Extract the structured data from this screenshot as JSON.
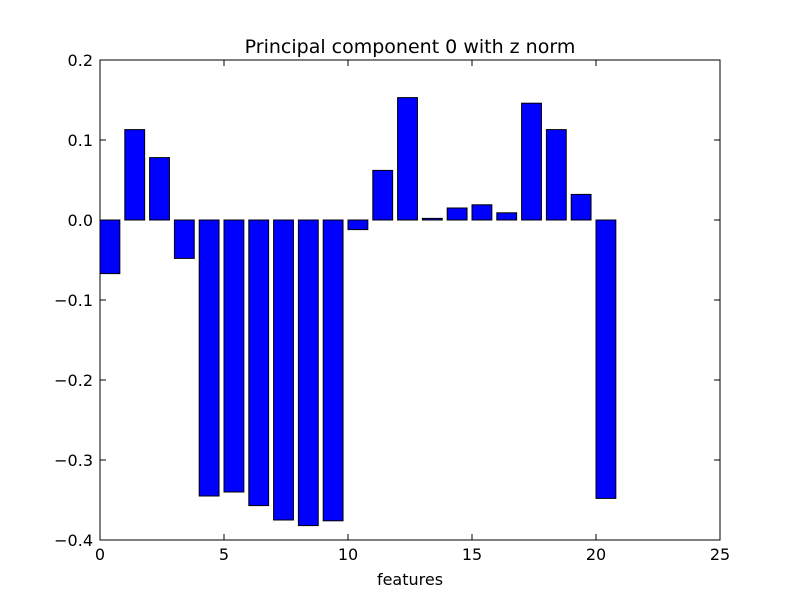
{
  "chart_data": {
    "type": "bar",
    "title": "Principal component 0 with z norm",
    "xlabel": "features",
    "ylabel": "",
    "xlim": [
      0,
      25
    ],
    "ylim": [
      -0.4,
      0.2
    ],
    "bar_width": 0.8,
    "x": [
      0,
      1,
      2,
      3,
      4,
      5,
      6,
      7,
      8,
      9,
      10,
      11,
      12,
      13,
      14,
      15,
      16,
      17,
      18,
      19,
      20
    ],
    "values": [
      -0.067,
      0.113,
      0.078,
      -0.048,
      -0.345,
      -0.34,
      -0.357,
      -0.375,
      -0.382,
      -0.376,
      -0.012,
      0.062,
      0.153,
      0.002,
      0.015,
      0.019,
      0.009,
      0.146,
      0.113,
      0.032,
      -0.348
    ],
    "x_ticks": [
      0,
      5,
      10,
      15,
      20,
      25
    ],
    "x_tick_labels": [
      "0",
      "5",
      "10",
      "15",
      "20",
      "25"
    ],
    "y_ticks": [
      -0.4,
      -0.3,
      -0.2,
      -0.1,
      0.0,
      0.1,
      0.2
    ],
    "y_tick_labels": [
      "−0.4",
      "−0.3",
      "−0.2",
      "−0.1",
      "0.0",
      "0.1",
      "0.2"
    ],
    "bar_color": "#0000ff",
    "edge_color": "#000000",
    "grid": false,
    "legend": "none"
  }
}
